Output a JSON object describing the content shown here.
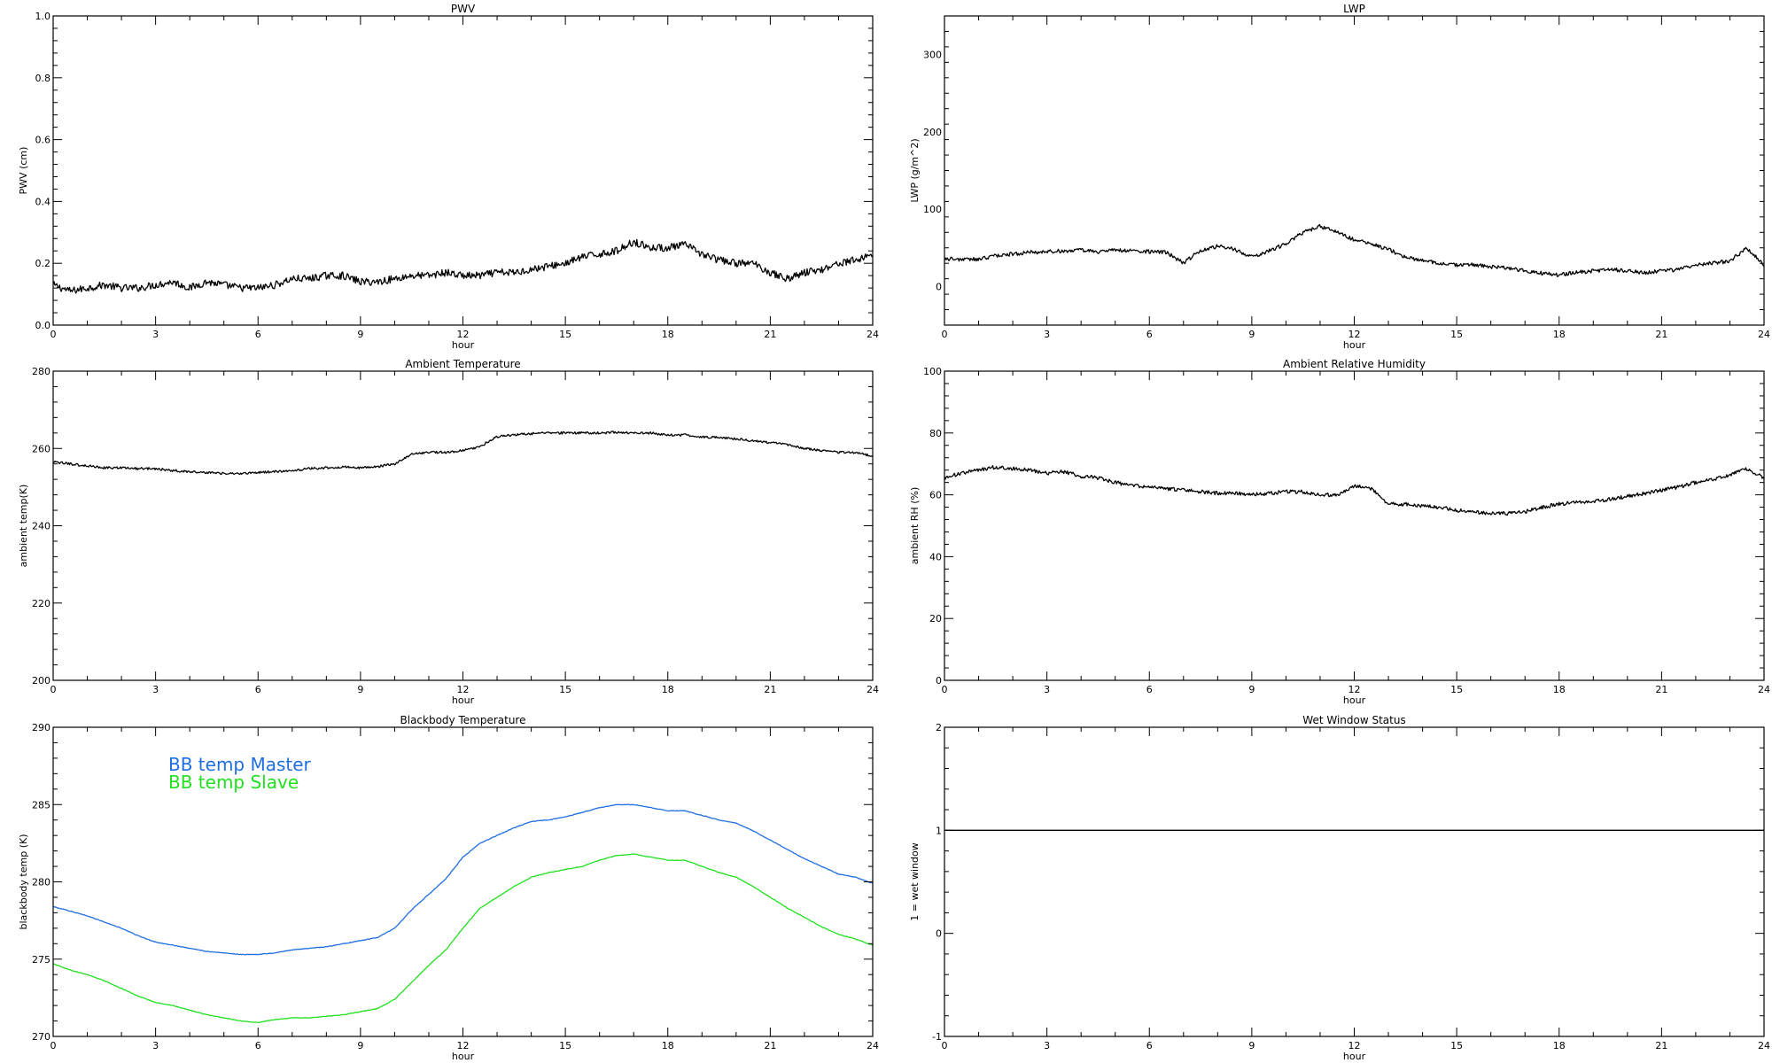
{
  "chart_data": [
    {
      "type": "line",
      "title": "PWV",
      "xlabel": "hour",
      "ylabel": "PWV (cm)",
      "xlim": [
        0,
        24
      ],
      "ylim": [
        0.0,
        1.0
      ],
      "xticks": [
        0,
        3,
        6,
        9,
        12,
        15,
        18,
        21,
        24
      ],
      "xtick_labels": [
        "0",
        "3",
        "6",
        "9",
        "12",
        "15",
        "18",
        "21",
        "24"
      ],
      "yticks": [
        0.0,
        0.2,
        0.4,
        0.6,
        0.8,
        1.0
      ],
      "ytick_labels": [
        "0.0",
        "0.2",
        "0.4",
        "0.6",
        "0.8",
        "1.0"
      ],
      "noise": 0.012,
      "series": [
        {
          "color": "#000000",
          "x": [
            0,
            0.5,
            1,
            1.5,
            2,
            2.5,
            3,
            3.5,
            4,
            4.5,
            5,
            5.5,
            6,
            6.5,
            7,
            7.5,
            8,
            8.5,
            9,
            9.5,
            10,
            10.5,
            11,
            11.5,
            12,
            12.5,
            13,
            13.5,
            14,
            14.5,
            15,
            15.5,
            16,
            16.5,
            17,
            17.5,
            18,
            18.5,
            19,
            19.5,
            20,
            20.5,
            21,
            21.5,
            22,
            22.5,
            23,
            23.5,
            24
          ],
          "y": [
            0.13,
            0.11,
            0.12,
            0.13,
            0.12,
            0.12,
            0.13,
            0.14,
            0.12,
            0.14,
            0.13,
            0.12,
            0.12,
            0.13,
            0.15,
            0.15,
            0.16,
            0.16,
            0.14,
            0.14,
            0.15,
            0.16,
            0.16,
            0.17,
            0.16,
            0.16,
            0.17,
            0.17,
            0.18,
            0.19,
            0.2,
            0.22,
            0.23,
            0.24,
            0.27,
            0.25,
            0.25,
            0.26,
            0.23,
            0.21,
            0.2,
            0.2,
            0.17,
            0.15,
            0.17,
            0.18,
            0.2,
            0.21,
            0.23
          ]
        }
      ]
    },
    {
      "type": "line",
      "title": "LWP",
      "xlabel": "hour",
      "ylabel": "LWP (g/m^2)",
      "xlim": [
        0,
        24
      ],
      "ylim": [
        -50,
        350
      ],
      "xticks": [
        0,
        3,
        6,
        9,
        12,
        15,
        18,
        21,
        24
      ],
      "xtick_labels": [
        "0",
        "3",
        "6",
        "9",
        "12",
        "15",
        "18",
        "21",
        "24"
      ],
      "yticks": [
        0,
        100,
        200,
        300
      ],
      "ytick_labels": [
        "0",
        "100",
        "200",
        "300"
      ],
      "noise": 2.5,
      "series": [
        {
          "color": "#000000",
          "x": [
            0,
            0.5,
            1,
            1.5,
            2,
            2.5,
            3,
            3.5,
            4,
            4.5,
            5,
            5.5,
            6,
            6.5,
            7,
            7.5,
            8,
            8.5,
            9,
            9.5,
            10,
            10.5,
            11,
            11.5,
            12,
            12.5,
            13,
            13.5,
            14,
            14.5,
            15,
            15.5,
            16,
            16.5,
            17,
            17.5,
            18,
            18.5,
            19,
            19.5,
            20,
            20.5,
            21,
            21.5,
            22,
            22.5,
            23,
            23.5,
            24
          ],
          "y": [
            36,
            35,
            35,
            40,
            42,
            44,
            45,
            46,
            47,
            45,
            47,
            46,
            45,
            44,
            30,
            47,
            52,
            48,
            38,
            46,
            55,
            70,
            78,
            70,
            60,
            55,
            48,
            38,
            33,
            30,
            28,
            28,
            25,
            24,
            20,
            17,
            15,
            18,
            20,
            22,
            20,
            18,
            20,
            22,
            28,
            30,
            33,
            50,
            27
          ]
        }
      ]
    },
    {
      "type": "line",
      "title": "Ambient Temperature",
      "xlabel": "hour",
      "ylabel": "ambient temp(K)",
      "xlim": [
        0,
        24
      ],
      "ylim": [
        200,
        280
      ],
      "xticks": [
        0,
        3,
        6,
        9,
        12,
        15,
        18,
        21,
        24
      ],
      "xtick_labels": [
        "0",
        "3",
        "6",
        "9",
        "12",
        "15",
        "18",
        "21",
        "24"
      ],
      "yticks": [
        200,
        220,
        240,
        260,
        280
      ],
      "ytick_labels": [
        "200",
        "220",
        "240",
        "260",
        "280"
      ],
      "noise": 0.3,
      "series": [
        {
          "color": "#000000",
          "x": [
            0,
            0.5,
            1,
            1.5,
            2,
            2.5,
            3,
            3.5,
            4,
            4.5,
            5,
            5.5,
            6,
            6.5,
            7,
            7.5,
            8,
            8.5,
            9,
            9.5,
            10,
            10.5,
            11,
            11.5,
            12,
            12.5,
            13,
            13.5,
            14,
            14.5,
            15,
            15.5,
            16,
            16.5,
            17,
            17.5,
            18,
            18.5,
            19,
            19.5,
            20,
            20.5,
            21,
            21.5,
            22,
            22.5,
            23,
            23.5,
            24
          ],
          "y": [
            256.5,
            256.0,
            255.5,
            255.0,
            255.0,
            254.8,
            254.8,
            254.3,
            254.0,
            253.8,
            253.5,
            253.5,
            253.8,
            254.0,
            254.2,
            254.8,
            255.0,
            255.2,
            255.0,
            255.3,
            256.0,
            258.5,
            259.0,
            259.0,
            259.5,
            260.5,
            263.0,
            263.5,
            263.8,
            264.0,
            264.0,
            264.0,
            264.0,
            264.2,
            264.0,
            264.0,
            263.5,
            263.5,
            263.0,
            262.8,
            262.5,
            262.0,
            261.5,
            261.0,
            260.0,
            259.5,
            259.0,
            259.0,
            258.0
          ]
        }
      ]
    },
    {
      "type": "line",
      "title": "Ambient Relative Humidity",
      "xlabel": "hour",
      "ylabel": "ambient RH (%)",
      "xlim": [
        0,
        24
      ],
      "ylim": [
        0,
        100
      ],
      "xticks": [
        0,
        3,
        6,
        9,
        12,
        15,
        18,
        21,
        24
      ],
      "xtick_labels": [
        "0",
        "3",
        "6",
        "9",
        "12",
        "15",
        "18",
        "21",
        "24"
      ],
      "yticks": [
        0,
        20,
        40,
        60,
        80,
        100
      ],
      "ytick_labels": [
        "0",
        "20",
        "40",
        "60",
        "80",
        "100"
      ],
      "noise": 0.6,
      "series": [
        {
          "color": "#000000",
          "x": [
            0,
            0.5,
            1,
            1.5,
            2,
            2.5,
            3,
            3.5,
            4,
            4.5,
            5,
            5.5,
            6,
            6.5,
            7,
            7.5,
            8,
            8.5,
            9,
            9.5,
            10,
            10.5,
            11,
            11.5,
            12,
            12.5,
            13,
            13.5,
            14,
            14.5,
            15,
            15.5,
            16,
            16.5,
            17,
            17.5,
            18,
            18.5,
            19,
            19.5,
            20,
            20.5,
            21,
            21.5,
            22,
            22.5,
            23,
            23.5,
            24
          ],
          "y": [
            65.5,
            67.0,
            68.0,
            69.0,
            68.5,
            68.0,
            67.0,
            67.5,
            66.0,
            65.5,
            64.0,
            63.0,
            62.5,
            62.0,
            61.5,
            61.0,
            60.5,
            60.5,
            60.0,
            60.5,
            61.0,
            61.0,
            60.0,
            60.0,
            63.0,
            62.0,
            57.0,
            57.0,
            56.5,
            56.0,
            55.0,
            54.5,
            54.0,
            54.0,
            54.5,
            56.0,
            57.0,
            57.5,
            58.0,
            58.5,
            59.5,
            60.5,
            61.5,
            62.5,
            64.0,
            65.0,
            66.5,
            68.5,
            65.5
          ]
        }
      ]
    },
    {
      "type": "line",
      "title": "Blackbody Temperature",
      "xlabel": "hour",
      "ylabel": "blackbody temp (K)",
      "xlim": [
        0,
        24
      ],
      "ylim": [
        270,
        290
      ],
      "xticks": [
        0,
        3,
        6,
        9,
        12,
        15,
        18,
        21,
        24
      ],
      "xtick_labels": [
        "0",
        "3",
        "6",
        "9",
        "12",
        "15",
        "18",
        "21",
        "24"
      ],
      "yticks": [
        270,
        275,
        280,
        285,
        290
      ],
      "ytick_labels": [
        "270",
        "275",
        "280",
        "285",
        "290"
      ],
      "noise": 0.02,
      "legend_position": "upper-left",
      "series": [
        {
          "name": "BB temp Master",
          "color": "#1f6fe0",
          "x": [
            0,
            0.5,
            1,
            1.5,
            2,
            2.5,
            3,
            3.5,
            4,
            4.5,
            5,
            5.5,
            6,
            6.5,
            7,
            7.5,
            8,
            8.5,
            9,
            9.5,
            10,
            10.5,
            11,
            11.5,
            12,
            12.5,
            13,
            13.5,
            14,
            14.5,
            15,
            15.5,
            16,
            16.5,
            17,
            17.5,
            18,
            18.5,
            19,
            19.5,
            20,
            20.5,
            21,
            21.5,
            22,
            22.5,
            23,
            23.5,
            24
          ],
          "y": [
            278.4,
            278.1,
            277.8,
            277.4,
            277.0,
            276.5,
            276.1,
            275.9,
            275.7,
            275.5,
            275.4,
            275.3,
            275.3,
            275.4,
            275.6,
            275.7,
            275.8,
            276.0,
            276.2,
            276.4,
            277.0,
            278.2,
            279.2,
            280.2,
            281.6,
            282.5,
            283.0,
            283.5,
            283.9,
            284.0,
            284.2,
            284.5,
            284.8,
            285.0,
            285.0,
            284.8,
            284.6,
            284.6,
            284.3,
            284.0,
            283.8,
            283.3,
            282.7,
            282.1,
            281.5,
            281.0,
            280.5,
            280.3,
            279.9
          ]
        },
        {
          "name": "BB temp Slave",
          "color": "#20e020",
          "x": [
            0,
            0.5,
            1,
            1.5,
            2,
            2.5,
            3,
            3.5,
            4,
            4.5,
            5,
            5.5,
            6,
            6.5,
            7,
            7.5,
            8,
            8.5,
            9,
            9.5,
            10,
            10.5,
            11,
            11.5,
            12,
            12.5,
            13,
            13.5,
            14,
            14.5,
            15,
            15.5,
            16,
            16.5,
            17,
            17.5,
            18,
            18.5,
            19,
            19.5,
            20,
            20.5,
            21,
            21.5,
            22,
            22.5,
            23,
            23.5,
            24
          ],
          "y": [
            274.7,
            274.3,
            274.0,
            273.6,
            273.1,
            272.6,
            272.2,
            272.0,
            271.7,
            271.4,
            271.2,
            271.0,
            270.9,
            271.1,
            271.2,
            271.2,
            271.3,
            271.4,
            271.6,
            271.8,
            272.4,
            273.5,
            274.6,
            275.6,
            277.0,
            278.3,
            279.0,
            279.7,
            280.3,
            280.6,
            280.8,
            281.0,
            281.4,
            281.7,
            281.8,
            281.6,
            281.4,
            281.4,
            281.0,
            280.6,
            280.3,
            279.7,
            279.0,
            278.3,
            277.7,
            277.1,
            276.6,
            276.3,
            275.9
          ]
        }
      ]
    },
    {
      "type": "line",
      "title": "Wet Window Status",
      "xlabel": "hour",
      "ylabel": "1 = wet window",
      "xlim": [
        0,
        24
      ],
      "ylim": [
        -1,
        2
      ],
      "xticks": [
        0,
        3,
        6,
        9,
        12,
        15,
        18,
        21,
        24
      ],
      "xtick_labels": [
        "0",
        "3",
        "6",
        "9",
        "12",
        "15",
        "18",
        "21",
        "24"
      ],
      "yticks": [
        -1,
        0,
        1,
        2
      ],
      "ytick_labels": [
        "-1",
        "0",
        "1",
        "2"
      ],
      "noise": 0,
      "series": [
        {
          "color": "#000000",
          "x": [
            0,
            24
          ],
          "y": [
            1,
            1
          ]
        }
      ]
    }
  ]
}
